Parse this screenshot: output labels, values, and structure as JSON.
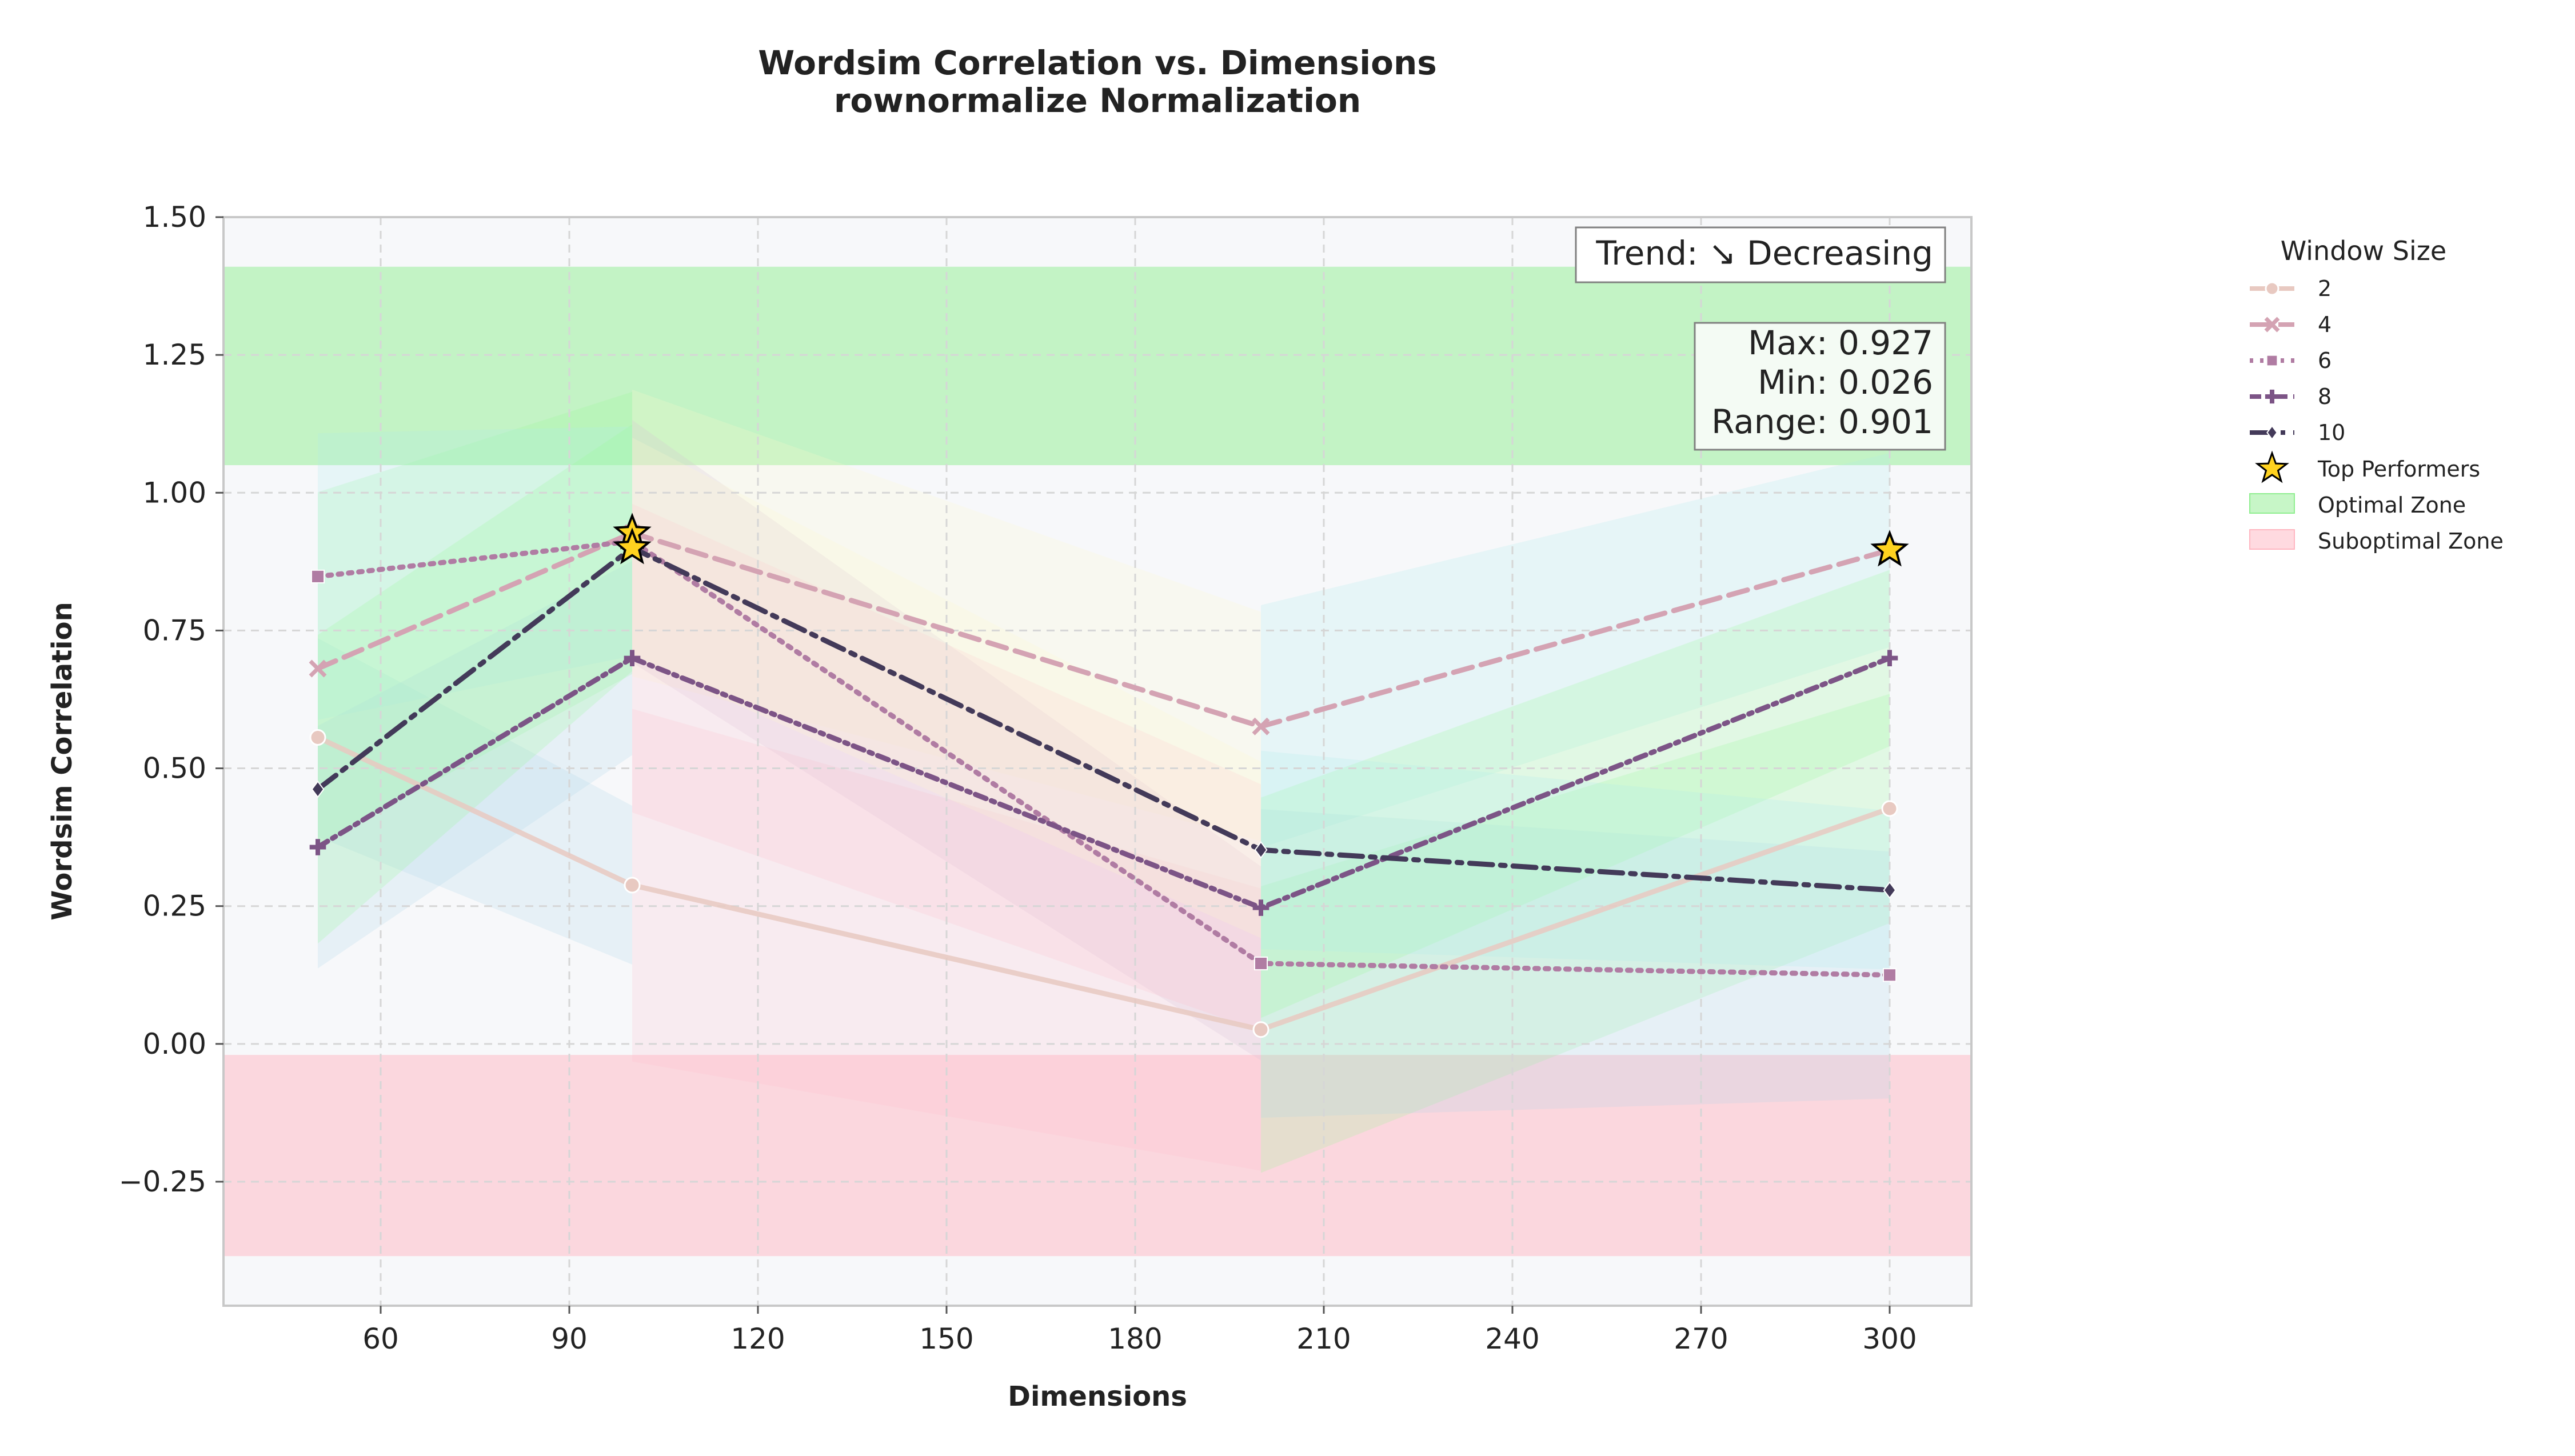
{
  "chart_data": {
    "type": "line",
    "title": "Wordsim Correlation vs. Dimensions",
    "subtitle": "rownormalize Normalization",
    "xlabel": "Dimensions",
    "ylabel": "Wordsim Correlation",
    "xlim": [
      35,
      313
    ],
    "ylim": [
      -0.475,
      1.5
    ],
    "xticks": [
      "60",
      "90",
      "120",
      "150",
      "180",
      "210",
      "240",
      "270",
      "300"
    ],
    "yticks": [
      "1.50",
      "1.25",
      "1.00",
      "0.75",
      "0.50",
      "0.25",
      "0.00",
      "−0.25"
    ],
    "grid": true,
    "x": [
      50,
      100,
      200,
      300
    ],
    "series": [
      {
        "name": "2",
        "values": [
          0.556,
          0.288,
          0.026,
          0.427
        ],
        "color": "#e8c9c1",
        "dash": "solid",
        "marker": "circle"
      },
      {
        "name": "4",
        "values": [
          0.681,
          0.927,
          0.576,
          0.896
        ],
        "color": "#d4a3b3",
        "dash": "dashed",
        "marker": "x"
      },
      {
        "name": "6",
        "values": [
          0.848,
          0.912,
          0.146,
          0.125
        ],
        "color": "#b07ca3",
        "dash": "dotted",
        "marker": "square"
      },
      {
        "name": "8",
        "values": [
          0.357,
          0.7,
          0.247,
          0.7
        ],
        "color": "#7c5486",
        "dash": "dashdot-fine",
        "marker": "plus"
      },
      {
        "name": "10",
        "values": [
          0.462,
          0.9,
          0.352,
          0.279
        ],
        "color": "#433a59",
        "dash": "dashdot",
        "marker": "diamond"
      }
    ],
    "top_performers": [
      {
        "x": 100,
        "y": 0.927
      },
      {
        "x": 100,
        "y": 0.9
      },
      {
        "x": 300,
        "y": 0.896
      }
    ],
    "optimal_zone": [
      1.05,
      1.41
    ],
    "suboptimal_zone": [
      -0.385,
      -0.02
    ],
    "legend": {
      "title": "Window Size",
      "position": "outside-right",
      "top_performers_label": "Top Performers",
      "optimal_label": "Optimal Zone",
      "suboptimal_label": "Suboptimal Zone"
    },
    "annotations": {
      "trend": "Trend: ↘ Decreasing",
      "max": "Max: 0.927",
      "min": "Min: 0.026",
      "range": "Range: 0.901"
    },
    "colors": {
      "optimal_zone": "#90ee90",
      "suboptimal_zone": "#ffb6c1",
      "plot_background": "#f7f8fa",
      "star": "#ffd21f"
    }
  }
}
